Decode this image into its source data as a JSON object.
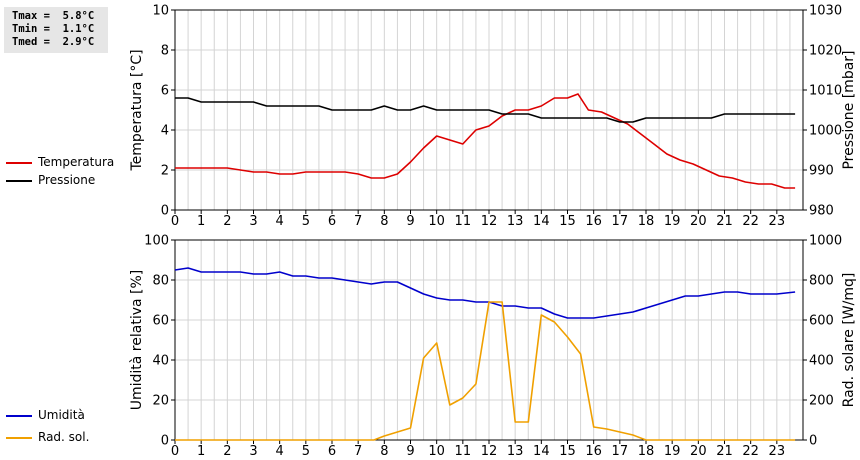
{
  "stats": {
    "tmax": "Tmax =  5.8°C",
    "tmin": "Tmin =  1.1°C",
    "tmed": "Tmed =  2.9°C"
  },
  "colors": {
    "temperature": "#dd0000",
    "pressure": "#000000",
    "humidity": "#0000cc",
    "radiation": "#f0a000",
    "grid": "#d4d4d4"
  },
  "chart_data": [
    {
      "type": "line",
      "legend_placement": "left",
      "grid": true,
      "xlim": [
        0,
        24
      ],
      "xticks": [
        "0",
        "1",
        "2",
        "3",
        "4",
        "5",
        "6",
        "7",
        "8",
        "9",
        "10",
        "11",
        "12",
        "13",
        "14",
        "15",
        "16",
        "17",
        "18",
        "19",
        "20",
        "21",
        "22",
        "23"
      ],
      "ylabel": "Temperatura [°C]",
      "ylim": [
        0,
        10
      ],
      "yticks": [
        "0",
        "2",
        "4",
        "6",
        "8",
        "10"
      ],
      "y2label": "Pressione [mbar]",
      "y2lim": [
        980,
        1030
      ],
      "y2ticks": [
        "980",
        "990",
        "1000",
        "1010",
        "1020",
        "1030"
      ],
      "series": [
        {
          "name": "Temperatura",
          "axis": "left",
          "x": [
            0,
            0.5,
            1,
            1.5,
            2,
            2.5,
            3,
            3.5,
            4,
            4.5,
            5,
            5.5,
            6,
            6.5,
            7,
            7.5,
            8,
            8.5,
            9,
            9.5,
            10,
            10.5,
            11,
            11.5,
            12,
            12.5,
            13,
            13.5,
            14,
            14.5,
            15,
            15.4,
            15.8,
            16.3,
            16.8,
            17.3,
            17.8,
            18.3,
            18.8,
            19.3,
            19.8,
            20.3,
            20.8,
            21.3,
            21.8,
            22.3,
            22.8,
            23.3,
            23.7
          ],
          "y": [
            2.1,
            2.1,
            2.1,
            2.1,
            2.1,
            2.0,
            1.9,
            1.9,
            1.8,
            1.8,
            1.9,
            1.9,
            1.9,
            1.9,
            1.8,
            1.6,
            1.6,
            1.8,
            2.4,
            3.1,
            3.7,
            3.5,
            3.3,
            4.0,
            4.2,
            4.7,
            5.0,
            5.0,
            5.2,
            5.6,
            5.6,
            5.8,
            5.0,
            4.9,
            4.6,
            4.3,
            3.8,
            3.3,
            2.8,
            2.5,
            2.3,
            2.0,
            1.7,
            1.6,
            1.4,
            1.3,
            1.3,
            1.1,
            1.1
          ]
        },
        {
          "name": "Pressione",
          "axis": "right",
          "x": [
            0,
            0.5,
            1,
            1.5,
            2,
            2.5,
            3,
            3.5,
            4,
            4.5,
            5,
            5.5,
            6,
            6.5,
            7,
            7.5,
            8,
            8.5,
            9,
            9.5,
            10,
            10.5,
            11,
            11.5,
            12,
            12.5,
            13,
            13.5,
            14,
            14.5,
            15,
            15.5,
            16,
            16.5,
            17,
            17.5,
            18,
            18.5,
            19,
            19.5,
            20,
            20.5,
            21,
            21.5,
            22,
            22.5,
            23,
            23.7
          ],
          "y": [
            1008,
            1008,
            1007,
            1007,
            1007,
            1007,
            1007,
            1006,
            1006,
            1006,
            1006,
            1006,
            1005,
            1005,
            1005,
            1005,
            1006,
            1005,
            1005,
            1006,
            1005,
            1005,
            1005,
            1005,
            1005,
            1004,
            1004,
            1004,
            1003,
            1003,
            1003,
            1003,
            1003,
            1003,
            1002,
            1002,
            1003,
            1003,
            1003,
            1003,
            1003,
            1003,
            1004,
            1004,
            1004,
            1004,
            1004,
            1004
          ]
        }
      ]
    },
    {
      "type": "line",
      "legend_placement": "left",
      "grid": true,
      "xlim": [
        0,
        24
      ],
      "xticks": [
        "0",
        "1",
        "2",
        "3",
        "4",
        "5",
        "6",
        "7",
        "8",
        "9",
        "10",
        "11",
        "12",
        "13",
        "14",
        "15",
        "16",
        "17",
        "18",
        "19",
        "20",
        "21",
        "22",
        "23"
      ],
      "ylabel": "Umidità relativa [%]",
      "ylim": [
        0,
        100
      ],
      "yticks": [
        "0",
        "20",
        "40",
        "60",
        "80",
        "100"
      ],
      "y2label": "Rad. solare [W/mq]",
      "y2lim": [
        0,
        1000
      ],
      "y2ticks": [
        "0",
        "200",
        "400",
        "600",
        "800",
        "1000"
      ],
      "series": [
        {
          "name": "Umidità",
          "axis": "left",
          "x": [
            0,
            0.5,
            1,
            1.5,
            2,
            2.5,
            3,
            3.5,
            4,
            4.5,
            5,
            5.5,
            6,
            6.5,
            7,
            7.5,
            8,
            8.5,
            9,
            9.5,
            10,
            10.5,
            11,
            11.5,
            12,
            12.5,
            13,
            13.5,
            14,
            14.5,
            15,
            15.5,
            16,
            16.5,
            17,
            17.5,
            18,
            18.5,
            19,
            19.5,
            20,
            20.5,
            21,
            21.5,
            22,
            22.5,
            23,
            23.7
          ],
          "y": [
            85,
            86,
            84,
            84,
            84,
            84,
            83,
            83,
            84,
            82,
            82,
            81,
            81,
            80,
            79,
            78,
            79,
            79,
            76,
            73,
            71,
            70,
            70,
            69,
            69,
            67,
            67,
            66,
            66,
            63,
            61,
            61,
            61,
            62,
            63,
            64,
            66,
            68,
            70,
            72,
            72,
            73,
            74,
            74,
            73,
            73,
            73,
            74
          ]
        },
        {
          "name": "Rad. sol.",
          "axis": "right",
          "x": [
            0,
            1,
            2,
            3,
            4,
            5,
            6,
            7,
            7.6,
            8,
            8.5,
            9,
            9.5,
            10,
            10.5,
            11,
            11.5,
            12,
            12.5,
            13,
            13.5,
            14,
            14.5,
            15,
            15.5,
            16,
            16.5,
            17,
            17.5,
            18,
            19,
            20,
            21,
            22,
            23,
            23.7
          ],
          "y": [
            0,
            0,
            0,
            0,
            0,
            0,
            0,
            0,
            0,
            20,
            40,
            60,
            410,
            485,
            175,
            210,
            280,
            690,
            690,
            90,
            90,
            625,
            590,
            515,
            430,
            65,
            55,
            40,
            25,
            0,
            0,
            0,
            0,
            0,
            0,
            0
          ]
        }
      ]
    }
  ]
}
